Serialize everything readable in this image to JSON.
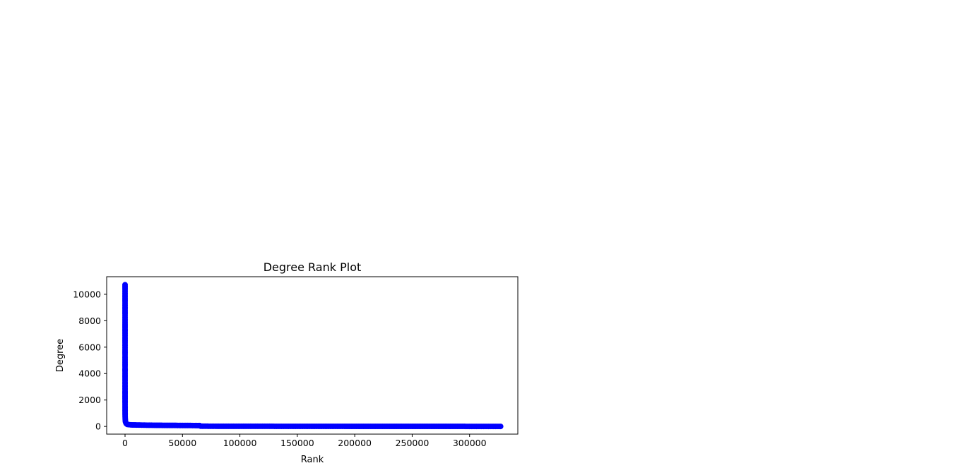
{
  "chart_data": {
    "type": "line",
    "title": "Degree Rank Plot",
    "xlabel": "Rank",
    "ylabel": "Degree",
    "xlim": [
      -16000,
      342000
    ],
    "ylim": [
      -580,
      11330
    ],
    "x_ticks": [
      0,
      50000,
      100000,
      150000,
      200000,
      250000,
      300000
    ],
    "x_tick_labels": [
      "0",
      "50000",
      "100000",
      "150000",
      "200000",
      "250000",
      "300000"
    ],
    "y_ticks": [
      0,
      2000,
      4000,
      6000,
      8000,
      10000
    ],
    "y_tick_labels": [
      "0",
      "2000",
      "4000",
      "6000",
      "8000",
      "10000"
    ],
    "grid": false,
    "legend": "none",
    "series": [
      {
        "color": "#0000ff",
        "marker": "circle",
        "x": [
          0,
          1,
          2,
          3,
          4,
          5,
          6,
          7,
          8,
          10,
          12,
          15,
          20,
          30,
          40,
          60,
          100,
          200,
          400,
          1000,
          2000,
          5000,
          10000,
          20000,
          30000,
          40000,
          50000,
          60000,
          65000,
          66000,
          80000,
          100000,
          150000,
          200000,
          250000,
          300000,
          327000
        ],
        "y": [
          10720,
          7600,
          7020,
          4300,
          4250,
          3600,
          3480,
          2650,
          2500,
          2200,
          2000,
          1800,
          1550,
          1300,
          1100,
          900,
          700,
          500,
          350,
          220,
          150,
          120,
          110,
          95,
          85,
          80,
          75,
          70,
          65,
          20,
          15,
          12,
          10,
          8,
          6,
          4,
          2
        ]
      }
    ]
  }
}
